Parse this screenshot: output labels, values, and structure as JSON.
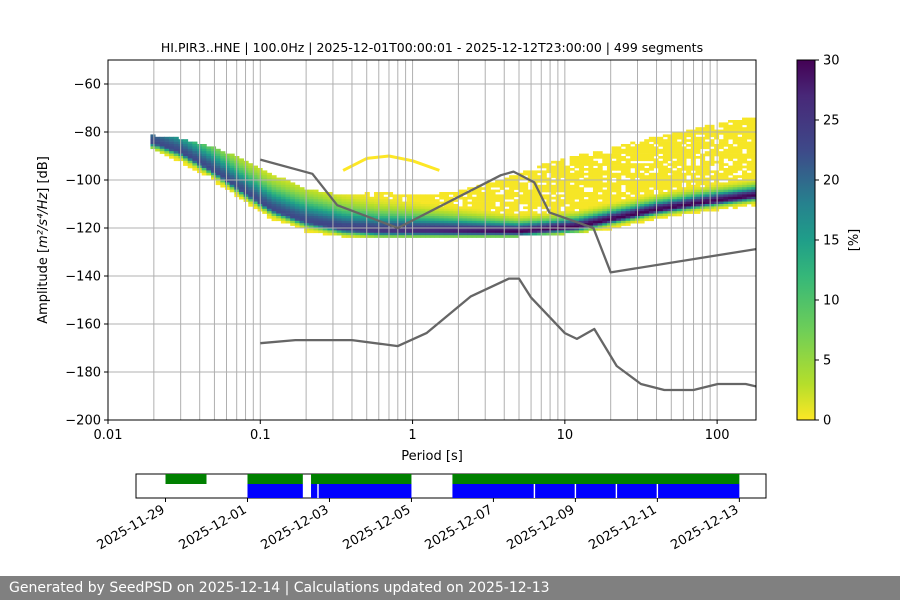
{
  "chart_data": {
    "type": "heatmap",
    "title": "HI.PIR3..HNE | 100.0Hz | 2025-12-01T00:00:01 - 2025-12-12T23:00:00 | 499 segments",
    "xlabel": "Period [s]",
    "ylabel_main": "Amplitude [",
    "ylabel_unit": "m²/s⁴/Hz",
    "ylabel_end": "] [dB]",
    "xscale": "log",
    "xlim": [
      0.01,
      180
    ],
    "ylim": [
      -200,
      -50
    ],
    "x_ticks": [
      {
        "value": 0.01,
        "label": "0.01"
      },
      {
        "value": 0.1,
        "label": "0.1"
      },
      {
        "value": 1,
        "label": "1"
      },
      {
        "value": 10,
        "label": "10"
      },
      {
        "value": 100,
        "label": "100"
      }
    ],
    "y_ticks": [
      {
        "value": -60,
        "label": "−60"
      },
      {
        "value": -80,
        "label": "−80"
      },
      {
        "value": -100,
        "label": "−100"
      },
      {
        "value": -120,
        "label": "−120"
      },
      {
        "value": -140,
        "label": "−140"
      },
      {
        "value": -160,
        "label": "−160"
      },
      {
        "value": -180,
        "label": "−180"
      },
      {
        "value": -200,
        "label": "−200"
      }
    ],
    "grid_periods": [
      0.02,
      0.03,
      0.04,
      0.05,
      0.06,
      0.07,
      0.08,
      0.09,
      0.1,
      0.2,
      0.3,
      0.4,
      0.5,
      0.6,
      0.7,
      0.8,
      0.9,
      1,
      2,
      3,
      4,
      5,
      6,
      7,
      8,
      9,
      10,
      20,
      30,
      40,
      50,
      60,
      70,
      80,
      90,
      100
    ],
    "grid_levels": [
      -60,
      -80,
      -100,
      -120,
      -140,
      -160,
      -180
    ],
    "colorbar": {
      "label": "[%]",
      "min": 0,
      "max": 30,
      "ticks": [
        "0",
        "5",
        "10",
        "15",
        "20",
        "25",
        "30"
      ]
    },
    "mode_curve": [
      [
        0.02,
        -84
      ],
      [
        0.03,
        -88
      ],
      [
        0.05,
        -96
      ],
      [
        0.08,
        -105
      ],
      [
        0.12,
        -112
      ],
      [
        0.2,
        -117
      ],
      [
        0.35,
        -120
      ],
      [
        0.6,
        -121
      ],
      [
        1,
        -121
      ],
      [
        2,
        -121
      ],
      [
        3,
        -121
      ],
      [
        5,
        -121
      ],
      [
        8,
        -120
      ],
      [
        12,
        -119
      ],
      [
        20,
        -116
      ],
      [
        40,
        -112
      ],
      [
        80,
        -109
      ],
      [
        180,
        -106
      ]
    ],
    "lower_edge": [
      [
        0.02,
        -86
      ],
      [
        0.03,
        -91
      ],
      [
        0.05,
        -99
      ],
      [
        0.08,
        -108
      ],
      [
        0.12,
        -115
      ],
      [
        0.2,
        -120
      ],
      [
        0.35,
        -122
      ],
      [
        0.6,
        -123
      ],
      [
        1,
        -123
      ],
      [
        2,
        -123
      ],
      [
        5,
        -122
      ],
      [
        10,
        -121
      ],
      [
        20,
        -119
      ],
      [
        40,
        -115
      ],
      [
        80,
        -112
      ],
      [
        180,
        -109
      ]
    ],
    "upper_edge": [
      [
        0.02,
        -81
      ],
      [
        0.03,
        -82
      ],
      [
        0.05,
        -86
      ],
      [
        0.08,
        -91
      ],
      [
        0.12,
        -97
      ],
      [
        0.2,
        -103
      ],
      [
        0.35,
        -106
      ],
      [
        0.6,
        -104
      ],
      [
        1,
        -106
      ],
      [
        2,
        -104
      ],
      [
        4,
        -99
      ],
      [
        8,
        -92
      ],
      [
        15,
        -88
      ],
      [
        30,
        -83
      ],
      [
        60,
        -79
      ],
      [
        100,
        -76
      ],
      [
        180,
        -73
      ]
    ],
    "upper_blob": [
      [
        0.35,
        -96
      ],
      [
        0.5,
        -91
      ],
      [
        0.7,
        -90
      ],
      [
        1,
        -92
      ],
      [
        1.5,
        -96
      ]
    ],
    "nhnm": [
      [
        0.1,
        -91.5
      ],
      [
        0.22,
        -97.4
      ],
      [
        0.32,
        -110.5
      ],
      [
        0.8,
        -120
      ],
      [
        3.8,
        -98
      ],
      [
        4.6,
        -96.5
      ],
      [
        6.3,
        -101
      ],
      [
        7.9,
        -113.5
      ],
      [
        15.4,
        -120
      ],
      [
        20,
        -138.5
      ],
      [
        180,
        -128.8
      ]
    ],
    "nlnm": [
      [
        0.1,
        -168
      ],
      [
        0.17,
        -166.7
      ],
      [
        0.4,
        -166.7
      ],
      [
        0.8,
        -169.2
      ],
      [
        1.24,
        -163.7
      ],
      [
        2.4,
        -148.6
      ],
      [
        4.3,
        -141.1
      ],
      [
        5,
        -141.1
      ],
      [
        6,
        -149
      ],
      [
        10,
        -163.8
      ],
      [
        12,
        -166.2
      ],
      [
        15.6,
        -162.1
      ],
      [
        21.9,
        -177.5
      ],
      [
        31.6,
        -185
      ],
      [
        45,
        -187.5
      ],
      [
        70,
        -187.5
      ],
      [
        101,
        -185
      ],
      [
        154,
        -185
      ],
      [
        180,
        -186
      ]
    ],
    "timeline": {
      "tick_labels": [
        "2025-11-29",
        "2025-12-01",
        "2025-12-03",
        "2025-12-05",
        "2025-12-07",
        "2025-12-09",
        "2025-12-11",
        "2025-12-13"
      ],
      "start_day": -2.72,
      "end_day": 12.65,
      "green_segments": [
        [
          -2.0,
          -1.0
        ],
        [
          0.0,
          1.35
        ],
        [
          1.55,
          4.0
        ],
        [
          5.0,
          12.0
        ]
      ],
      "blue_segments": [
        [
          0.0,
          1.35
        ],
        [
          1.55,
          4.0
        ],
        [
          5.0,
          12.0
        ]
      ],
      "blue_gaps": [
        1.72,
        7.0,
        8.0,
        9.0,
        10.0
      ]
    }
  },
  "footer": {
    "text": "Generated by SeedPSD on 2025-12-14 | Calculations updated on 2025-12-13"
  }
}
